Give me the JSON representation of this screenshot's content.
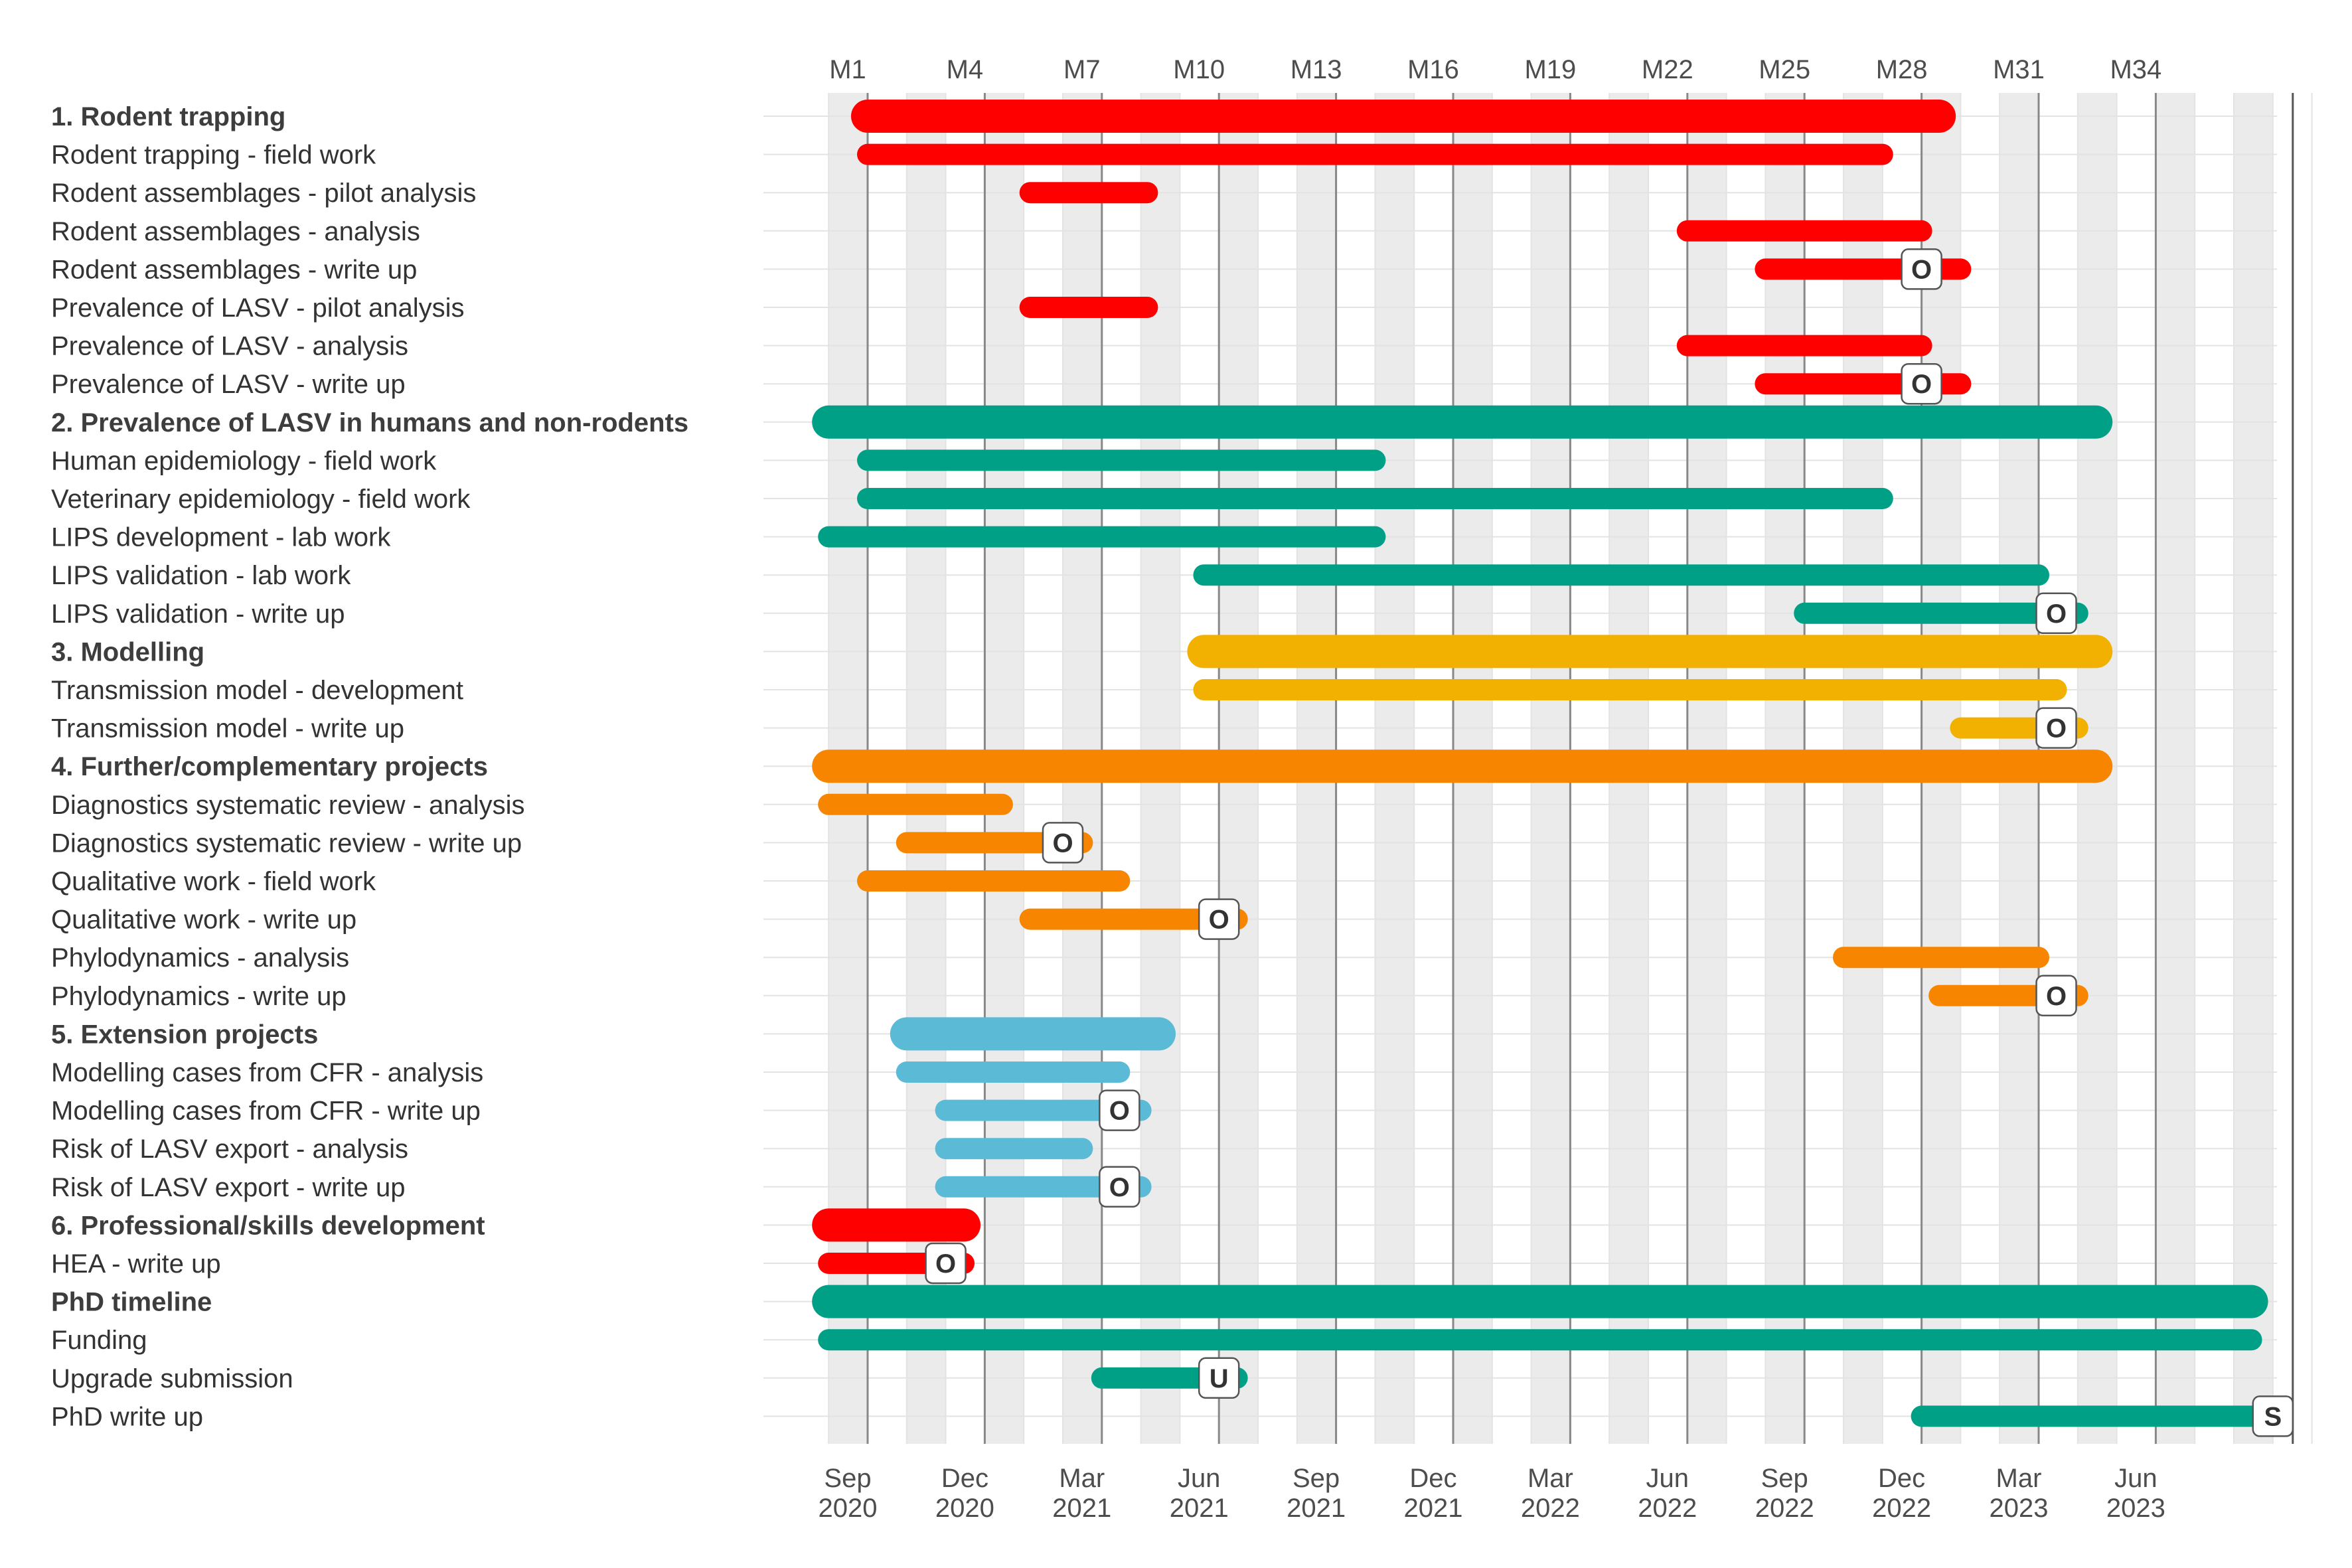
{
  "chart_data": {
    "type": "gantt",
    "x_start": "2020-08",
    "x_end": "2023-09",
    "top_axis": {
      "ticks": [
        {
          "label": "M1",
          "month": "2020-09"
        },
        {
          "label": "M4",
          "month": "2020-12"
        },
        {
          "label": "M7",
          "month": "2021-03"
        },
        {
          "label": "M10",
          "month": "2021-06"
        },
        {
          "label": "M13",
          "month": "2021-09"
        },
        {
          "label": "M16",
          "month": "2021-12"
        },
        {
          "label": "M19",
          "month": "2022-03"
        },
        {
          "label": "M22",
          "month": "2022-06"
        },
        {
          "label": "M25",
          "month": "2022-09"
        },
        {
          "label": "M28",
          "month": "2022-12"
        },
        {
          "label": "M31",
          "month": "2023-03"
        },
        {
          "label": "M34",
          "month": "2023-06"
        }
      ]
    },
    "bottom_axis": {
      "ticks": [
        {
          "month_label": "Sep",
          "year_label": "2020",
          "month": "2020-09"
        },
        {
          "month_label": "Dec",
          "year_label": "2020",
          "month": "2020-12"
        },
        {
          "month_label": "Mar",
          "year_label": "2021",
          "month": "2021-03"
        },
        {
          "month_label": "Jun",
          "year_label": "2021",
          "month": "2021-06"
        },
        {
          "month_label": "Sep",
          "year_label": "2021",
          "month": "2021-09"
        },
        {
          "month_label": "Dec",
          "year_label": "2021",
          "month": "2021-12"
        },
        {
          "month_label": "Mar",
          "year_label": "2022",
          "month": "2022-03"
        },
        {
          "month_label": "Jun",
          "year_label": "2022",
          "month": "2022-06"
        },
        {
          "month_label": "Sep",
          "year_label": "2022",
          "month": "2022-09"
        },
        {
          "month_label": "Dec",
          "year_label": "2022",
          "month": "2022-12"
        },
        {
          "month_label": "Mar",
          "year_label": "2023",
          "month": "2023-03"
        },
        {
          "month_label": "Jun",
          "year_label": "2023",
          "month": "2023-06"
        }
      ]
    },
    "shaded_bands": [
      "2020-08",
      "2020-10",
      "2020-12",
      "2021-02",
      "2021-04",
      "2021-06",
      "2021-08",
      "2021-10",
      "2021-12",
      "2022-02",
      "2022-04",
      "2022-06",
      "2022-08",
      "2022-10",
      "2022-12",
      "2023-02",
      "2023-04",
      "2023-06",
      "2023-08"
    ],
    "colors": {
      "red": "#FF0000",
      "teal": "#00A087",
      "yellow": "#F2B000",
      "orange": "#F78500",
      "lightblue": "#5BBBD6",
      "grid_major": "#888888",
      "grid_minor": "#e3e3e3",
      "band": "#ebebeb"
    },
    "rows": [
      {
        "label": "1. Rodent trapping",
        "heading": true,
        "color": "red",
        "start": "2020-09-01",
        "end": "2022-12-15"
      },
      {
        "label": "Rodent trapping - field work",
        "heading": false,
        "color": "red",
        "start": "2020-09-01",
        "end": "2022-11-01"
      },
      {
        "label": "Rodent assemblages - pilot analysis",
        "heading": false,
        "color": "red",
        "start": "2021-01-06",
        "end": "2021-04-06"
      },
      {
        "label": "Rodent assemblages - analysis",
        "heading": false,
        "color": "red",
        "start": "2022-06-01",
        "end": "2022-12-01"
      },
      {
        "label": "Rodent assemblages - write up",
        "heading": false,
        "color": "red",
        "start": "2022-08-01",
        "end": "2023-01-01",
        "milestone": "O",
        "milestone_date": "2022-12-01"
      },
      {
        "label": "Prevalence of LASV - pilot analysis",
        "heading": false,
        "color": "red",
        "start": "2021-01-06",
        "end": "2021-04-06"
      },
      {
        "label": "Prevalence of LASV - analysis",
        "heading": false,
        "color": "red",
        "start": "2022-06-01",
        "end": "2022-12-01"
      },
      {
        "label": "Prevalence of LASV - write up",
        "heading": false,
        "color": "red",
        "start": "2022-08-01",
        "end": "2023-01-01",
        "milestone": "O",
        "milestone_date": "2022-12-01"
      },
      {
        "label": "2. Prevalence of LASV in humans and non-rodents",
        "heading": true,
        "color": "teal",
        "start": "2020-08-01",
        "end": "2023-04-15"
      },
      {
        "label": "Human epidemiology - field work",
        "heading": false,
        "color": "teal",
        "start": "2020-09-01",
        "end": "2021-10-01"
      },
      {
        "label": "Veterinary epidemiology - field work",
        "heading": false,
        "color": "teal",
        "start": "2020-09-01",
        "end": "2022-11-01"
      },
      {
        "label": "LIPS development - lab work",
        "heading": false,
        "color": "teal",
        "start": "2020-08-01",
        "end": "2021-10-01"
      },
      {
        "label": "LIPS validation - lab work",
        "heading": false,
        "color": "teal",
        "start": "2021-05-20",
        "end": "2023-03-01"
      },
      {
        "label": "LIPS validation - write up",
        "heading": false,
        "color": "teal",
        "start": "2022-09-01",
        "end": "2023-04-01",
        "milestone": "O",
        "milestone_date": "2023-03-15"
      },
      {
        "label": "3. Modelling",
        "heading": true,
        "color": "yellow",
        "start": "2021-05-20",
        "end": "2023-04-15"
      },
      {
        "label": "Transmission model - development",
        "heading": false,
        "color": "yellow",
        "start": "2021-05-20",
        "end": "2023-03-15"
      },
      {
        "label": "Transmission model - write up",
        "heading": false,
        "color": "yellow",
        "start": "2023-01-01",
        "end": "2023-04-01",
        "milestone": "O",
        "milestone_date": "2023-03-15"
      },
      {
        "label": "4. Further/complementary projects",
        "heading": true,
        "color": "orange",
        "start": "2020-08-01",
        "end": "2023-04-15"
      },
      {
        "label": "Diagnostics systematic review - analysis",
        "heading": false,
        "color": "orange",
        "start": "2020-08-01",
        "end": "2020-12-15"
      },
      {
        "label": "Diagnostics systematic review - write up",
        "heading": false,
        "color": "orange",
        "start": "2020-10-01",
        "end": "2021-02-15",
        "milestone": "O",
        "milestone_date": "2021-02-01"
      },
      {
        "label": "Qualitative work - field work",
        "heading": false,
        "color": "orange",
        "start": "2020-09-01",
        "end": "2021-03-15"
      },
      {
        "label": "Qualitative work - write up",
        "heading": false,
        "color": "orange",
        "start": "2021-01-06",
        "end": "2021-06-15",
        "milestone": "O",
        "milestone_date": "2021-06-01"
      },
      {
        "label": "Phylodynamics - analysis",
        "heading": false,
        "color": "orange",
        "start": "2022-10-01",
        "end": "2023-03-01"
      },
      {
        "label": "Phylodynamics - write up",
        "heading": false,
        "color": "orange",
        "start": "2022-12-15",
        "end": "2023-04-01",
        "milestone": "O",
        "milestone_date": "2023-03-15"
      },
      {
        "label": "5. Extension projects",
        "heading": true,
        "color": "lightblue",
        "start": "2020-10-01",
        "end": "2021-04-15"
      },
      {
        "label": "Modelling cases from CFR - analysis",
        "heading": false,
        "color": "lightblue",
        "start": "2020-10-01",
        "end": "2021-03-15"
      },
      {
        "label": "Modelling cases from CFR - write up",
        "heading": false,
        "color": "lightblue",
        "start": "2020-11-01",
        "end": "2021-04-01",
        "milestone": "O",
        "milestone_date": "2021-03-15"
      },
      {
        "label": "Risk of LASV export - analysis",
        "heading": false,
        "color": "lightblue",
        "start": "2020-11-01",
        "end": "2021-02-15"
      },
      {
        "label": "Risk of LASV export - write up",
        "heading": false,
        "color": "lightblue",
        "start": "2020-11-01",
        "end": "2021-04-01",
        "milestone": "O",
        "milestone_date": "2021-03-15"
      },
      {
        "label": "6. Professional/skills development",
        "heading": true,
        "color": "red",
        "start": "2020-08-01",
        "end": "2020-11-15"
      },
      {
        "label": "HEA - write up",
        "heading": false,
        "color": "red",
        "start": "2020-08-01",
        "end": "2020-11-15",
        "milestone": "O",
        "milestone_date": "2020-11-01"
      },
      {
        "label": "PhD timeline",
        "heading": true,
        "color": "teal",
        "start": "2020-08-01",
        "end": "2023-08-15"
      },
      {
        "label": "Funding",
        "heading": false,
        "color": "teal",
        "start": "2020-08-01",
        "end": "2023-08-15"
      },
      {
        "label": "Upgrade submission",
        "heading": false,
        "color": "teal",
        "start": "2021-03-01",
        "end": "2021-06-15",
        "milestone": "U",
        "milestone_date": "2021-06-01"
      },
      {
        "label": "PhD write up",
        "heading": false,
        "color": "teal",
        "start": "2022-12-01",
        "end": "2023-09-01",
        "milestone": "S",
        "milestone_date": "2023-09-01"
      }
    ]
  }
}
